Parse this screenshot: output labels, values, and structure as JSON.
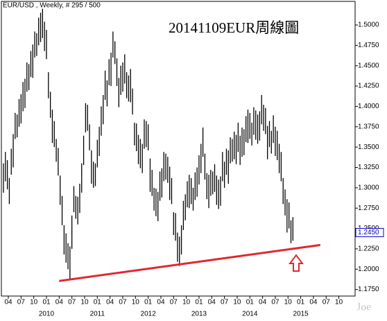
{
  "chart_data": {
    "type": "ohlc",
    "header": "EUR/USD , Weekly, # 295 / 500",
    "title": "20141109EUR周線圖",
    "watermark": "Joe",
    "color": "#000000",
    "x": [
      0,
      2,
      4,
      6,
      8,
      10,
      12,
      14,
      16,
      18,
      20,
      22,
      24,
      26,
      28,
      30,
      32,
      34,
      36,
      38,
      40,
      42,
      44,
      46,
      48,
      50,
      52,
      54,
      56,
      58,
      60,
      62,
      64,
      66,
      68,
      70,
      72,
      74,
      76,
      78,
      80,
      82,
      84,
      86,
      88,
      90,
      92,
      94,
      96,
      98,
      100,
      102,
      104,
      106,
      108,
      110,
      112,
      114,
      116,
      118,
      120,
      122,
      124,
      126,
      128,
      130,
      132,
      134,
      136,
      138,
      140,
      142,
      144,
      146,
      148,
      150,
      152,
      154,
      156,
      158,
      160,
      162,
      164,
      166,
      168,
      170,
      172,
      174,
      176,
      178,
      180,
      182,
      184,
      186,
      188,
      190,
      192,
      194,
      196,
      198,
      200,
      202,
      204,
      206,
      208,
      210,
      212,
      214,
      216,
      218,
      220,
      222,
      224,
      226,
      228,
      230,
      232,
      234,
      236,
      238,
      240,
      242,
      244,
      246,
      248,
      250,
      252,
      254,
      256,
      258,
      260,
      262,
      264,
      266,
      268,
      270,
      272,
      274,
      276,
      278,
      280,
      282,
      284,
      286,
      288,
      290,
      292,
      294,
      296
    ],
    "high": [
      1.33,
      1.344,
      1.334,
      1.312,
      1.348,
      1.366,
      1.392,
      1.39,
      1.409,
      1.415,
      1.43,
      1.434,
      1.454,
      1.452,
      1.468,
      1.476,
      1.492,
      1.49,
      1.509,
      1.515,
      1.52,
      1.504,
      1.494,
      1.442,
      1.418,
      1.396,
      1.382,
      1.36,
      1.349,
      1.315,
      1.29,
      1.254,
      1.244,
      1.232,
      1.228,
      1.266,
      1.302,
      1.29,
      1.289,
      1.305,
      1.33,
      1.364,
      1.404,
      1.402,
      1.378,
      1.346,
      1.332,
      1.33,
      1.359,
      1.375,
      1.4,
      1.414,
      1.444,
      1.432,
      1.458,
      1.466,
      1.492,
      1.48,
      1.459,
      1.435,
      1.45,
      1.454,
      1.464,
      1.442,
      1.438,
      1.446,
      1.422,
      1.38,
      1.379,
      1.365,
      1.36,
      1.354,
      1.384,
      1.382,
      1.378,
      1.336,
      1.322,
      1.3,
      1.299,
      1.295,
      1.32,
      1.324,
      1.344,
      1.342,
      1.338,
      1.326,
      1.312,
      1.27,
      1.269,
      1.245,
      1.24,
      1.254,
      1.284,
      1.292,
      1.308,
      1.316,
      1.312,
      1.3,
      1.319,
      1.325,
      1.34,
      1.354,
      1.374,
      1.342,
      1.318,
      1.316,
      1.322,
      1.32,
      1.329,
      1.315,
      1.31,
      1.314,
      1.344,
      1.332,
      1.348,
      1.346,
      1.362,
      1.36,
      1.369,
      1.365,
      1.38,
      1.364,
      1.374,
      1.372,
      1.388,
      1.396,
      1.392,
      1.38,
      1.399,
      1.395,
      1.39,
      1.394,
      1.414,
      1.402,
      1.398,
      1.376,
      1.382,
      1.37,
      1.389,
      1.375,
      1.37,
      1.354,
      1.344,
      1.312,
      1.298,
      1.286,
      1.282,
      1.26,
      1.264
    ],
    "low": [
      1.294,
      1.308,
      1.298,
      1.28,
      1.316,
      1.325,
      1.36,
      1.362,
      1.375,
      1.379,
      1.394,
      1.398,
      1.418,
      1.42,
      1.436,
      1.435,
      1.46,
      1.462,
      1.475,
      1.479,
      1.484,
      1.468,
      1.458,
      1.41,
      1.386,
      1.355,
      1.35,
      1.332,
      1.315,
      1.279,
      1.254,
      1.218,
      1.208,
      1.2,
      1.188,
      1.225,
      1.27,
      1.262,
      1.255,
      1.269,
      1.294,
      1.328,
      1.368,
      1.37,
      1.346,
      1.305,
      1.3,
      1.302,
      1.325,
      1.339,
      1.364,
      1.378,
      1.408,
      1.4,
      1.426,
      1.425,
      1.46,
      1.452,
      1.425,
      1.399,
      1.414,
      1.418,
      1.428,
      1.41,
      1.406,
      1.405,
      1.39,
      1.352,
      1.345,
      1.329,
      1.324,
      1.318,
      1.348,
      1.35,
      1.346,
      1.295,
      1.29,
      1.272,
      1.265,
      1.259,
      1.284,
      1.288,
      1.308,
      1.31,
      1.306,
      1.285,
      1.28,
      1.242,
      1.235,
      1.209,
      1.204,
      1.218,
      1.248,
      1.26,
      1.276,
      1.275,
      1.28,
      1.272,
      1.285,
      1.289,
      1.304,
      1.318,
      1.338,
      1.31,
      1.286,
      1.275,
      1.29,
      1.292,
      1.295,
      1.279,
      1.274,
      1.278,
      1.308,
      1.3,
      1.316,
      1.305,
      1.33,
      1.332,
      1.335,
      1.329,
      1.344,
      1.328,
      1.338,
      1.34,
      1.356,
      1.355,
      1.36,
      1.352,
      1.365,
      1.359,
      1.354,
      1.358,
      1.378,
      1.37,
      1.366,
      1.335,
      1.35,
      1.342,
      1.355,
      1.339,
      1.334,
      1.318,
      1.308,
      1.28,
      1.266,
      1.245,
      1.25,
      1.232,
      1.235
    ],
    "last_value": {
      "value": 1.245,
      "label": "1.2450"
    },
    "last_value_color": "#0000cc",
    "trend_line": {
      "x": [
        57,
        324
      ],
      "y": [
        1.1855,
        1.2297
      ],
      "color": "#e0282e"
    },
    "xlim": [
      -2.1,
      359.6
    ],
    "ylim": [
      1.167,
      1.529
    ],
    "yticks": [
      {
        "value": 1.175,
        "label": "1.1750"
      },
      {
        "value": 1.2,
        "label": "1.2000"
      },
      {
        "value": 1.225,
        "label": "1.2250"
      },
      {
        "value": 1.25,
        "label": "1.2500"
      },
      {
        "value": 1.275,
        "label": "1.2750"
      },
      {
        "value": 1.3,
        "label": "1.3000"
      },
      {
        "value": 1.325,
        "label": "1.3250"
      },
      {
        "value": 1.35,
        "label": "1.3500"
      },
      {
        "value": 1.375,
        "label": "1.3750"
      },
      {
        "value": 1.4,
        "label": "1.4000"
      },
      {
        "value": 1.425,
        "label": "1.4250"
      },
      {
        "value": 1.45,
        "label": "1.4500"
      },
      {
        "value": 1.475,
        "label": "1.4750"
      },
      {
        "value": 1.5,
        "label": "1.5000"
      }
    ],
    "xticks": [
      {
        "value": 5,
        "label": "04"
      },
      {
        "value": 18,
        "label": "07"
      },
      {
        "value": 31,
        "label": "10"
      },
      {
        "value": 44,
        "label": "01"
      },
      {
        "value": 57,
        "label": "04"
      },
      {
        "value": 70,
        "label": "07"
      },
      {
        "value": 83,
        "label": "10"
      },
      {
        "value": 96,
        "label": "01"
      },
      {
        "value": 109,
        "label": "04"
      },
      {
        "value": 122,
        "label": "07"
      },
      {
        "value": 135,
        "label": "10"
      },
      {
        "value": 148,
        "label": "01"
      },
      {
        "value": 161,
        "label": "04"
      },
      {
        "value": 174,
        "label": "07"
      },
      {
        "value": 187,
        "label": "10"
      },
      {
        "value": 200,
        "label": "01"
      },
      {
        "value": 213,
        "label": "04"
      },
      {
        "value": 226,
        "label": "07"
      },
      {
        "value": 239,
        "label": "10"
      },
      {
        "value": 252,
        "label": "01"
      },
      {
        "value": 265,
        "label": "04"
      },
      {
        "value": 278,
        "label": "07"
      },
      {
        "value": 291,
        "label": "10"
      },
      {
        "value": 304,
        "label": "01"
      },
      {
        "value": 317,
        "label": "04"
      },
      {
        "value": 330,
        "label": "07"
      },
      {
        "value": 343,
        "label": "10"
      }
    ],
    "year_labels": [
      {
        "value": 44,
        "label": "2010"
      },
      {
        "value": 96,
        "label": "2011"
      },
      {
        "value": 148,
        "label": "2012"
      },
      {
        "value": 200,
        "label": "2013"
      },
      {
        "value": 252,
        "label": "2014"
      },
      {
        "value": 304,
        "label": "2015"
      }
    ]
  }
}
